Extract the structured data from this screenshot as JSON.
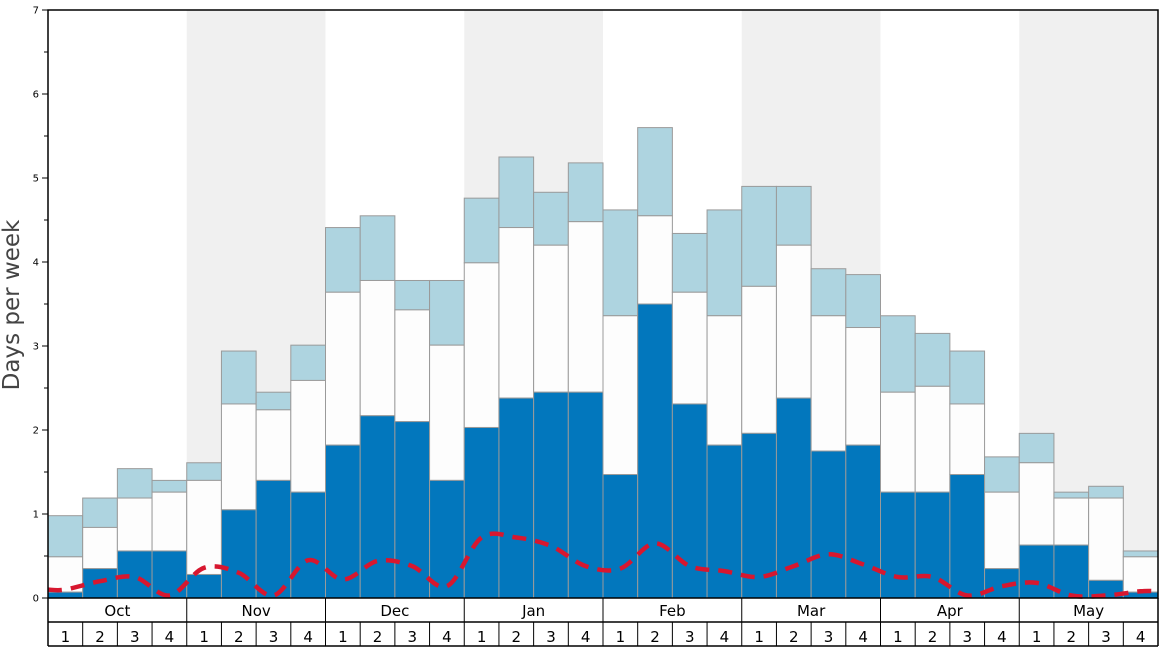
{
  "chart_data": {
    "type": "bar",
    "stacked": true,
    "ylabel": "Days per week",
    "ylim": [
      0,
      7
    ],
    "yticks": [
      "0",
      "1",
      "2",
      "3",
      "4",
      "5",
      "6",
      "7"
    ],
    "months": [
      "Oct",
      "Nov",
      "Dec",
      "Jan",
      "Feb",
      "Mar",
      "Apr",
      "May"
    ],
    "week_labels": [
      "1",
      "2",
      "3",
      "4"
    ],
    "shaded_months": [
      "Nov",
      "Jan",
      "Mar",
      "May"
    ],
    "colors": {
      "bottom": "#0277bd",
      "middle": "#fdfdfd",
      "top": "#aed4e0",
      "line": "#d7172f",
      "band": "#f0f0f0",
      "bar_edge": "#9a9a9a"
    },
    "categories": [
      "Oct 1",
      "Oct 2",
      "Oct 3",
      "Oct 4",
      "Nov 1",
      "Nov 2",
      "Nov 3",
      "Nov 4",
      "Dec 1",
      "Dec 2",
      "Dec 3",
      "Dec 4",
      "Jan 1",
      "Jan 2",
      "Jan 3",
      "Jan 4",
      "Feb 1",
      "Feb 2",
      "Feb 3",
      "Feb 4",
      "Mar 1",
      "Mar 2",
      "Mar 3",
      "Mar 4",
      "Apr 1",
      "Apr 2",
      "Apr 3",
      "Apr 4",
      "May 1",
      "May 2",
      "May 3",
      "May 4"
    ],
    "bottom_values": [
      0.07,
      0.35,
      0.56,
      0.56,
      0.28,
      1.05,
      1.4,
      1.26,
      1.82,
      2.17,
      2.1,
      1.4,
      2.03,
      2.38,
      2.45,
      2.45,
      1.47,
      3.5,
      2.31,
      1.82,
      1.96,
      2.38,
      1.75,
      1.82,
      1.26,
      1.26,
      1.47,
      0.35,
      0.63,
      0.63,
      0.21,
      0.07
    ],
    "middle_tops": [
      0.49,
      0.84,
      1.19,
      1.26,
      1.4,
      2.31,
      2.24,
      2.59,
      3.64,
      3.78,
      3.43,
      3.01,
      3.99,
      4.41,
      4.2,
      4.48,
      3.36,
      4.55,
      3.64,
      3.36,
      3.71,
      4.2,
      3.36,
      3.22,
      2.45,
      2.52,
      2.31,
      1.26,
      1.61,
      1.19,
      1.19,
      0.49
    ],
    "totals": [
      0.98,
      1.19,
      1.54,
      1.4,
      1.61,
      2.94,
      2.45,
      3.01,
      4.41,
      4.55,
      3.78,
      3.78,
      4.76,
      5.25,
      4.83,
      5.18,
      4.62,
      5.6,
      4.34,
      4.62,
      4.9,
      4.9,
      3.92,
      3.85,
      3.36,
      3.15,
      2.94,
      1.68,
      1.96,
      1.26,
      1.33,
      0.56
    ],
    "line_values": [
      0.1,
      0.2,
      0.25,
      0.03,
      0.36,
      0.3,
      0.03,
      0.45,
      0.22,
      0.44,
      0.38,
      0.14,
      0.72,
      0.72,
      0.62,
      0.38,
      0.35,
      0.65,
      0.38,
      0.32,
      0.25,
      0.38,
      0.52,
      0.4,
      0.25,
      0.25,
      0.03,
      0.14,
      0.18,
      0.03,
      0.03,
      0.08
    ]
  }
}
